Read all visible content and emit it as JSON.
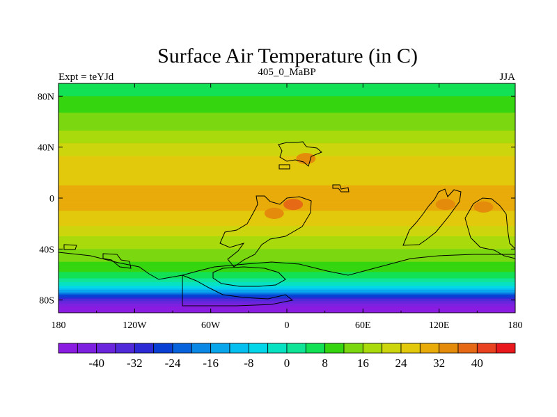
{
  "chart_data": {
    "type": "heatmap",
    "title": "Surface Air Temperature (in C)",
    "subtitle_left": "Expt = teYJd",
    "subtitle_center": "405_0_MaBP",
    "subtitle_right": "JJA",
    "x_range": [
      -180,
      180
    ],
    "y_range": [
      -90,
      90
    ],
    "x_ticks": [
      {
        "value": -180,
        "label": "180"
      },
      {
        "value": -120,
        "label": "120W"
      },
      {
        "value": -60,
        "label": "60W"
      },
      {
        "value": 0,
        "label": "0"
      },
      {
        "value": 60,
        "label": "60E"
      },
      {
        "value": 120,
        "label": "120E"
      },
      {
        "value": 180,
        "label": "180"
      }
    ],
    "y_ticks": [
      {
        "value": 80,
        "label": "80N"
      },
      {
        "value": 40,
        "label": "40N"
      },
      {
        "value": 0,
        "label": "0"
      },
      {
        "value": -40,
        "label": "40S"
      },
      {
        "value": -80,
        "label": "80S"
      }
    ],
    "zonal_profile": {
      "latitudes": [
        90,
        80,
        70,
        60,
        50,
        40,
        30,
        20,
        10,
        0,
        -10,
        -20,
        -30,
        -40,
        -50,
        -60,
        -65,
        -70,
        -75,
        -80,
        -85,
        -90
      ],
      "temperature_c": [
        6,
        8,
        11,
        14,
        17,
        21,
        25,
        27,
        28,
        29,
        28,
        25,
        20,
        16,
        12,
        7,
        2,
        -6,
        -20,
        -34,
        -44,
        -46
      ]
    },
    "hotspots": [
      {
        "lon": 5,
        "lat": -5,
        "temperature_c": 36
      },
      {
        "lon": -10,
        "lat": -12,
        "temperature_c": 34
      },
      {
        "lon": 125,
        "lat": -5,
        "temperature_c": 33
      },
      {
        "lon": 155,
        "lat": -7,
        "temperature_c": 33
      },
      {
        "lon": 15,
        "lat": 31,
        "temperature_c": 32
      }
    ],
    "colorbar": {
      "levels": [
        -44,
        -40,
        -36,
        -32,
        -28,
        -24,
        -20,
        -16,
        -12,
        -8,
        -4,
        0,
        4,
        8,
        12,
        16,
        20,
        24,
        28,
        32,
        36,
        40,
        44
      ],
      "colors": [
        "#8a1be0",
        "#7d20e0",
        "#6a25dd",
        "#5029d8",
        "#2c2ad4",
        "#0a3fd4",
        "#0663dc",
        "#0a88e6",
        "#0aa6ec",
        "#05bff0",
        "#04d6ea",
        "#06e2c2",
        "#10e496",
        "#12e055",
        "#35d610",
        "#7bd810",
        "#a8da0c",
        "#cdd60c",
        "#e2c90c",
        "#e8ab0a",
        "#e48b0c",
        "#e66a16",
        "#e84220",
        "#e8181c"
      ],
      "tick_labels": [
        "-40",
        "-32",
        "-24",
        "-16",
        "-8",
        "0",
        "8",
        "16",
        "24",
        "32",
        "40"
      ]
    },
    "grid": false
  }
}
